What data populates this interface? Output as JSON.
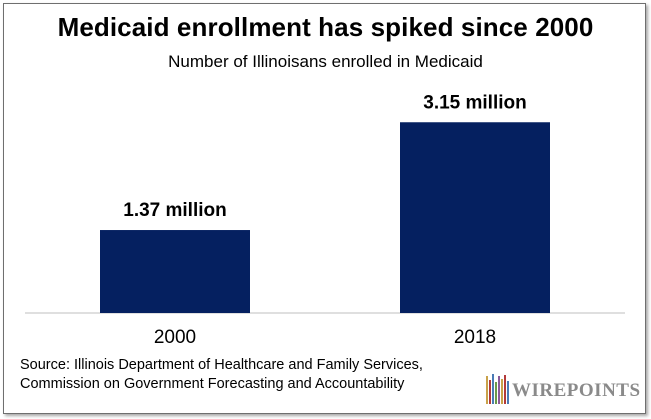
{
  "chart_data": {
    "type": "bar",
    "title": "Medicaid enrollment has spiked since 2000",
    "subtitle": "Number of Illinoisans enrolled in Medicaid",
    "categories": [
      "2000",
      "2018"
    ],
    "values": [
      1.37,
      3.15
    ],
    "data_labels": [
      "1.37 million",
      "3.15 million"
    ],
    "xlabel": "",
    "ylabel": "",
    "ylim": [
      0,
      3.6
    ],
    "grid": false,
    "legend": "none",
    "colors": {
      "bar": "#052060",
      "axis": "#bfbfbf"
    }
  },
  "source": {
    "line1": "Source: Illinois Department of Healthcare and Family Services,",
    "line2": "Commission on Government Forecasting and Accountability"
  },
  "logo": {
    "text": "WIREPOINTS",
    "icon": "wirepoints-w-logo-icon"
  }
}
